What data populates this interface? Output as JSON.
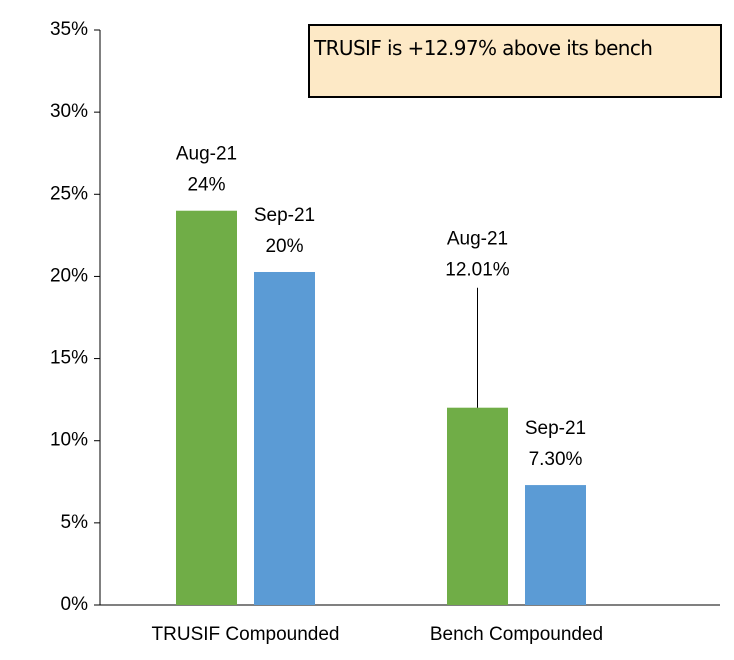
{
  "chart_data": {
    "type": "bar",
    "categories": [
      "TRUSIF Compounded",
      "Bench Compounded"
    ],
    "series": [
      {
        "name": "Aug-21",
        "color": "#70ad47",
        "values": [
          24,
          12.01
        ],
        "value_labels": [
          "24%",
          "12.01%"
        ]
      },
      {
        "name": "Sep-21",
        "color": "#5b9bd5",
        "values": [
          20.27,
          7.3
        ],
        "value_labels": [
          "20%",
          "7.30%"
        ]
      }
    ],
    "ylim": [
      0,
      35
    ],
    "yticks": [
      {
        "value": 0,
        "label": "0%"
      },
      {
        "value": 5,
        "label": "5%"
      },
      {
        "value": 10,
        "label": "10%"
      },
      {
        "value": 15,
        "label": "15%"
      },
      {
        "value": 20,
        "label": "20%"
      },
      {
        "value": 25,
        "label": "25%"
      },
      {
        "value": 30,
        "label": "30%"
      },
      {
        "value": 35,
        "label": "35%"
      }
    ],
    "annotation": "TRUSIF is +12.97% above its bench"
  }
}
